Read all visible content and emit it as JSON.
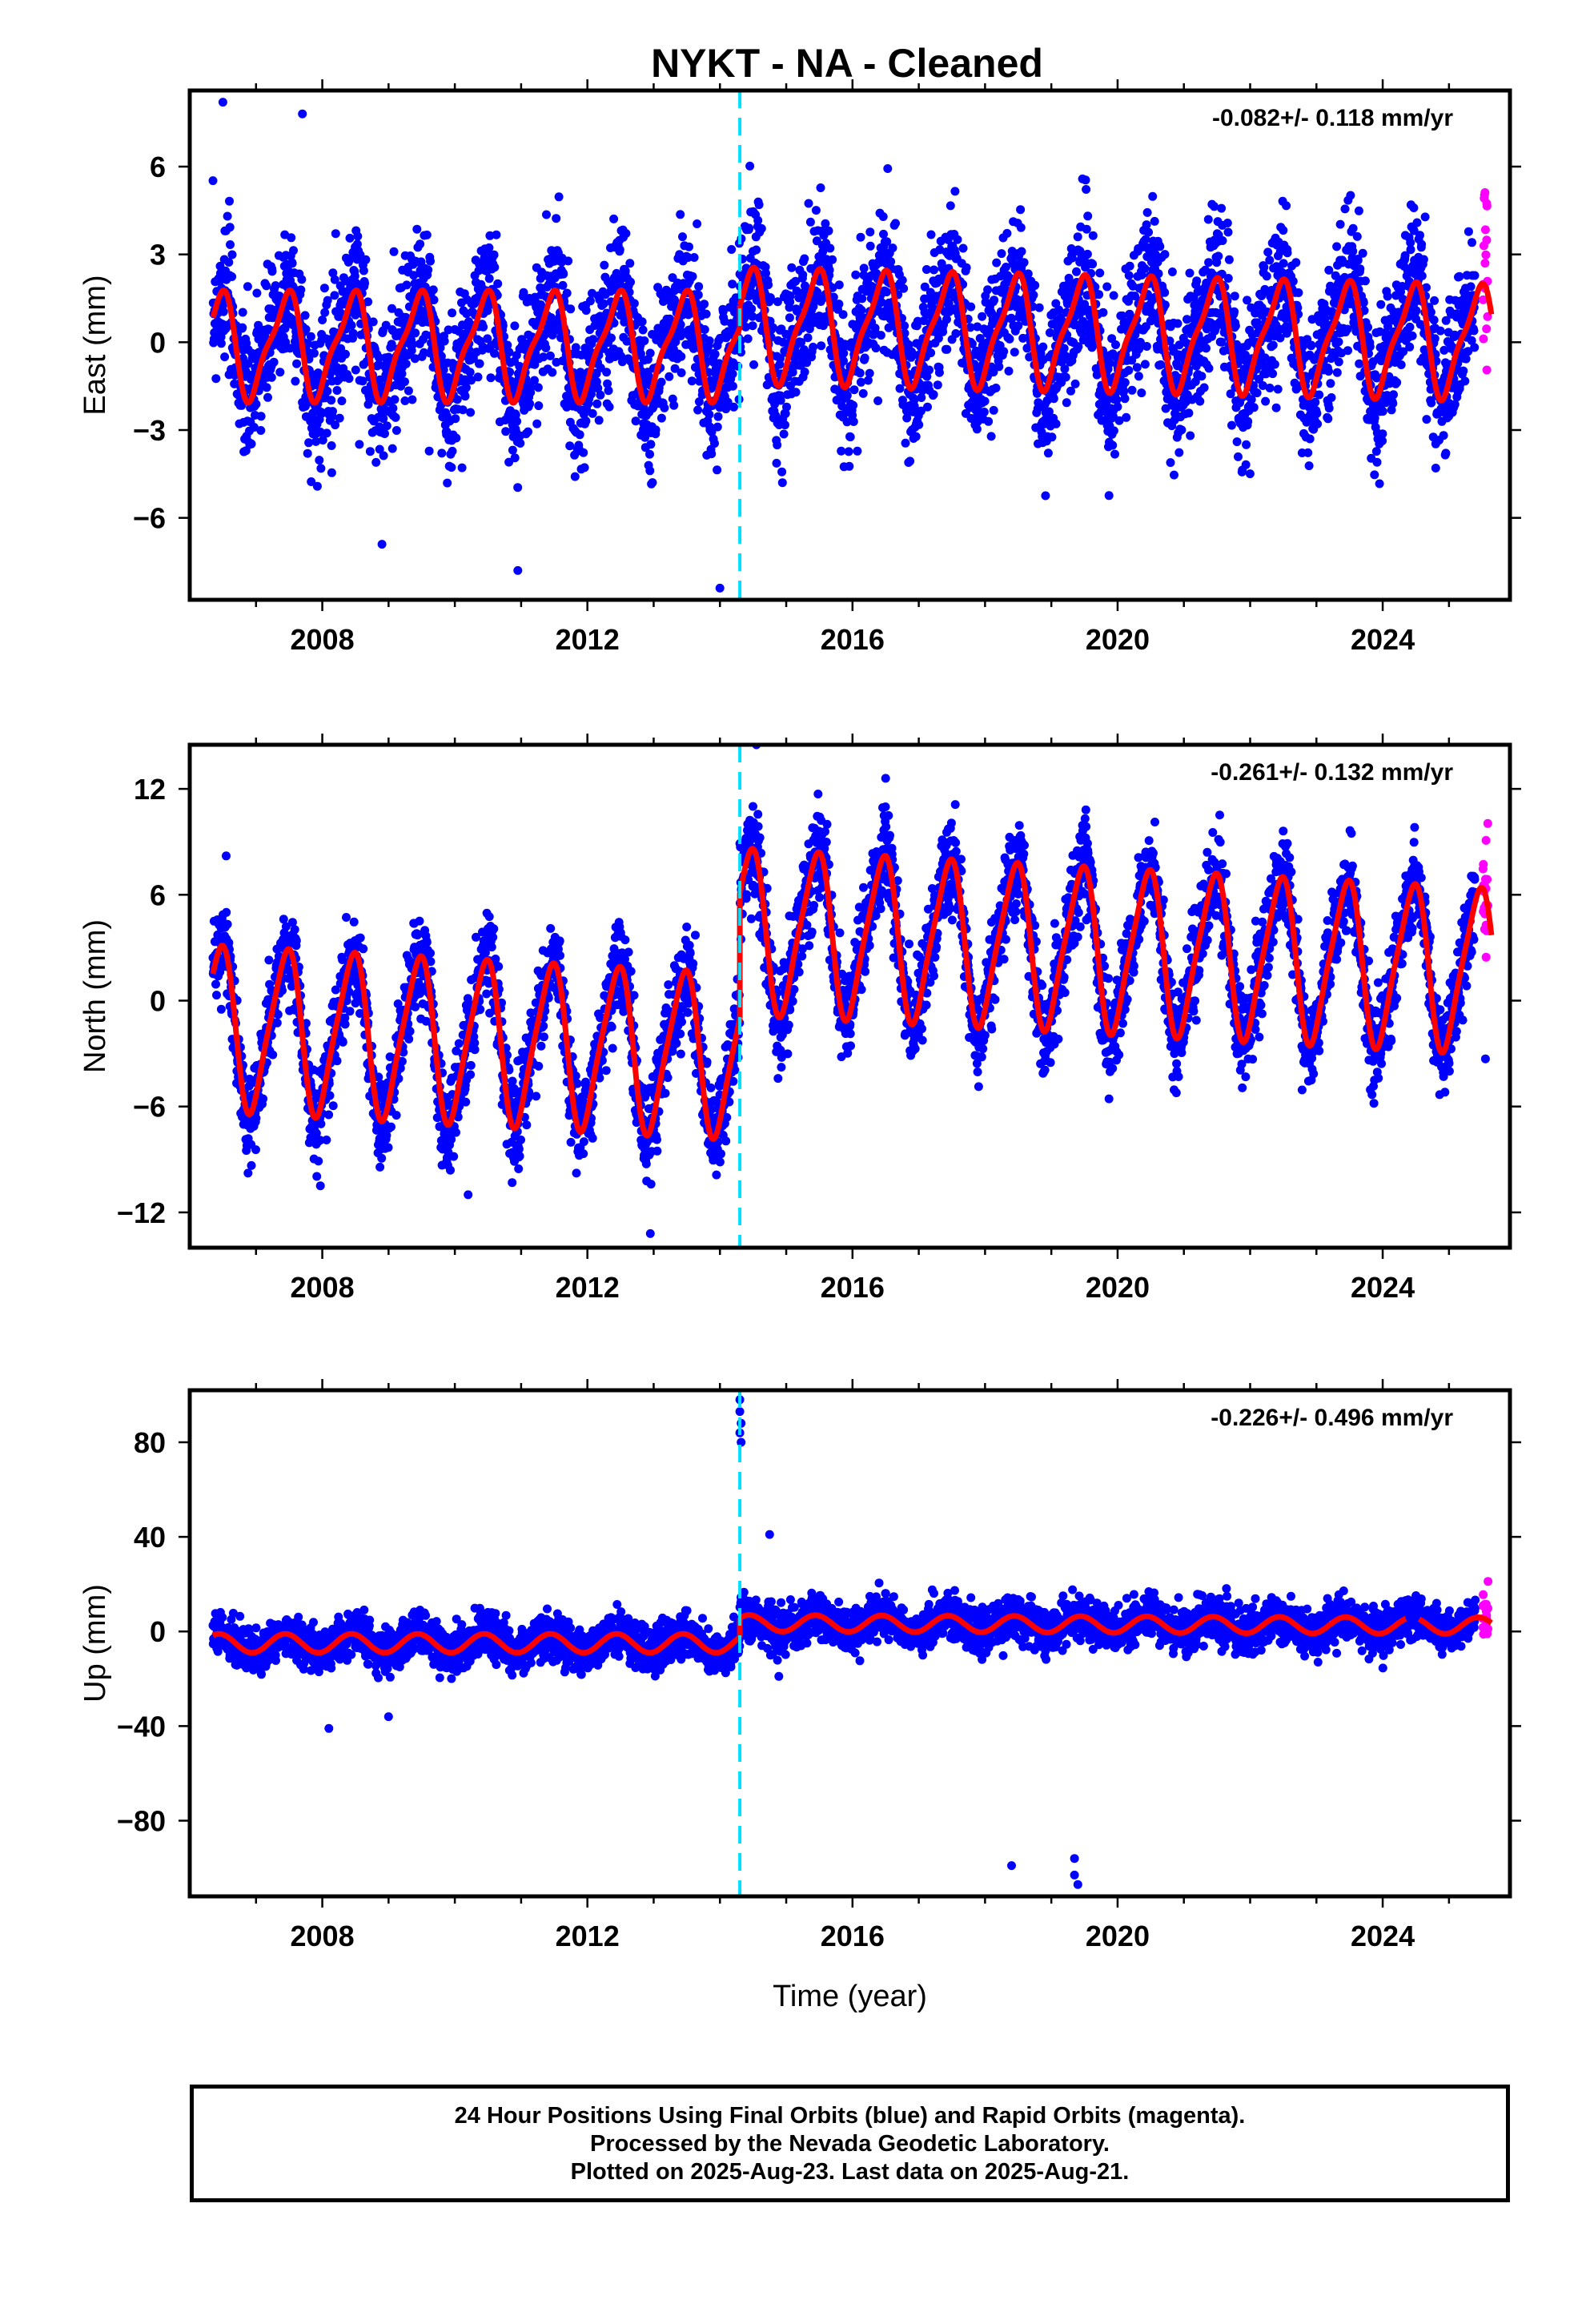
{
  "title": "NYKT  - NA - Cleaned",
  "colors": {
    "final": "#0000ff",
    "rapid": "#ff00ff",
    "model": "#ff0000",
    "break": "#00e0ff"
  },
  "footer": {
    "line1": "24 Hour Positions Using Final Orbits (blue) and Rapid Orbits (magenta).",
    "line2": "Processed by the Nevada Geodetic Laboratory.",
    "line3": "Plotted on 2025-Aug-23. Last data on 2025-Aug-21."
  },
  "chart_data": [
    {
      "type": "scatter",
      "title": "NYKT  - NA - Cleaned",
      "ylabel": "East (mm)",
      "xlabel": "",
      "rate_label": "-0.082+/- 0.118 mm/yr",
      "xlim": [
        2006.0,
        2025.92
      ],
      "ylim": [
        -8.8,
        8.6
      ],
      "xticks": [
        2008,
        2012,
        2016,
        2020,
        2024
      ],
      "yticks": [
        6,
        3,
        0,
        -3,
        -6
      ],
      "ytick_labels": [
        "6",
        "3",
        "0",
        "−3",
        "−6"
      ],
      "grid": false,
      "break_epoch": 2014.3,
      "series": [
        {
          "name": "Final Orbits (blue)",
          "style": "points",
          "color": "#0000ff",
          "x_range": [
            2006.35,
            2025.4
          ],
          "sigma": 1.2
        },
        {
          "name": "Rapid Orbits (magenta)",
          "style": "points",
          "color": "#ff00ff",
          "x_range": [
            2025.42,
            2025.64
          ]
        },
        {
          "style": "line",
          "color": "#ff0000",
          "segments": [
            {
              "x0": 2006.35,
              "x1": 2014.3,
              "offset": -0.1,
              "trend": 0.0,
              "amp_annual": 1.7,
              "amp_semiannual": 0.5
            },
            {
              "x0": 2014.3,
              "x1": 2025.64,
              "offset": 0.6,
              "trend": -0.05,
              "amp_annual": 1.8,
              "amp_semiannual": 0.5
            }
          ]
        }
      ],
      "outliers": [
        [
          2006.5,
          8.2
        ],
        [
          2007.7,
          7.8
        ],
        [
          2014.0,
          -8.4
        ],
        [
          2010.95,
          -7.8
        ],
        [
          2008.9,
          -6.9
        ],
        [
          2024.8,
          -4.3
        ]
      ]
    },
    {
      "type": "scatter",
      "title": "",
      "ylabel": "North (mm)",
      "xlabel": "",
      "rate_label": "-0.261+/- 0.132 mm/yr",
      "xlim": [
        2006.0,
        2025.92
      ],
      "ylim": [
        -14.0,
        14.5
      ],
      "xticks": [
        2008,
        2012,
        2016,
        2020,
        2024
      ],
      "yticks": [
        12,
        6,
        0,
        -6,
        -12
      ],
      "ytick_labels": [
        "12",
        "6",
        "0",
        "−6",
        "−12"
      ],
      "grid": false,
      "break_epoch": 2014.3,
      "series": [
        {
          "name": "Final Orbits (blue)",
          "style": "points",
          "color": "#0000ff",
          "x_range": [
            2006.35,
            2025.4
          ],
          "sigma": 1.3
        },
        {
          "name": "Rapid Orbits (magenta)",
          "style": "points",
          "color": "#ff00ff",
          "x_range": [
            2025.42,
            2025.64
          ]
        },
        {
          "style": "line",
          "color": "#ff0000",
          "segments": [
            {
              "x0": 2006.35,
              "x1": 2014.3,
              "offset": -1.5,
              "trend": -0.2,
              "amp_annual": 4.5,
              "amp_semiannual": 0.8
            },
            {
              "x0": 2014.3,
              "x1": 2025.64,
              "offset": 4.0,
              "trend": -0.2,
              "amp_annual": 4.5,
              "amp_semiannual": 0.8
            }
          ]
        }
      ],
      "outliers": [
        [
          2006.55,
          8.2
        ],
        [
          2012.95,
          -13.2
        ],
        [
          2014.55,
          14.5
        ],
        [
          2025.55,
          -3.3
        ],
        [
          2010.2,
          -11.0
        ],
        [
          2016.5,
          12.6
        ]
      ]
    },
    {
      "type": "scatter",
      "title": "",
      "ylabel": "Up (mm)",
      "xlabel": "Time (year)",
      "rate_label": "-0.226+/- 0.496 mm/yr",
      "xlim": [
        2006.0,
        2025.92
      ],
      "ylim": [
        -112,
        102
      ],
      "xticks": [
        2008,
        2012,
        2016,
        2020,
        2024
      ],
      "yticks": [
        80,
        40,
        0,
        -40,
        -80
      ],
      "ytick_labels": [
        "80",
        "40",
        "0",
        "−40",
        "−80"
      ],
      "grid": false,
      "break_epoch": 2014.3,
      "series": [
        {
          "name": "Final Orbits (blue)",
          "style": "points",
          "color": "#0000ff",
          "x_range": [
            2006.35,
            2025.4
          ],
          "sigma": 4.5
        },
        {
          "name": "Rapid Orbits (magenta)",
          "style": "points",
          "color": "#ff00ff",
          "x_range": [
            2025.42,
            2025.64
          ]
        },
        {
          "style": "line",
          "color": "#ff0000",
          "segments": [
            {
              "x0": 2006.35,
              "x1": 2014.3,
              "offset": -5.0,
              "trend": 0.0,
              "amp_annual": 4.0,
              "amp_semiannual": 0.0
            },
            {
              "x0": 2014.3,
              "x1": 2024.35,
              "offset": 3.5,
              "trend": -0.1,
              "amp_annual": 3.5,
              "amp_semiannual": 0.0
            },
            {
              "x0": 2024.55,
              "x1": 2025.64,
              "offset": 2.5,
              "trend": 0.0,
              "amp_annual": 3.5,
              "amp_semiannual": 0.0
            }
          ]
        }
      ],
      "outliers": [
        [
          2014.3,
          98
        ],
        [
          2014.3,
          93
        ],
        [
          2014.32,
          88
        ],
        [
          2014.3,
          84
        ],
        [
          2014.32,
          80
        ],
        [
          2014.75,
          41
        ],
        [
          2018.4,
          -99
        ],
        [
          2019.35,
          -96
        ],
        [
          2019.35,
          -103
        ],
        [
          2019.4,
          -107
        ],
        [
          2008.1,
          -41
        ],
        [
          2009.0,
          -36
        ]
      ]
    }
  ]
}
